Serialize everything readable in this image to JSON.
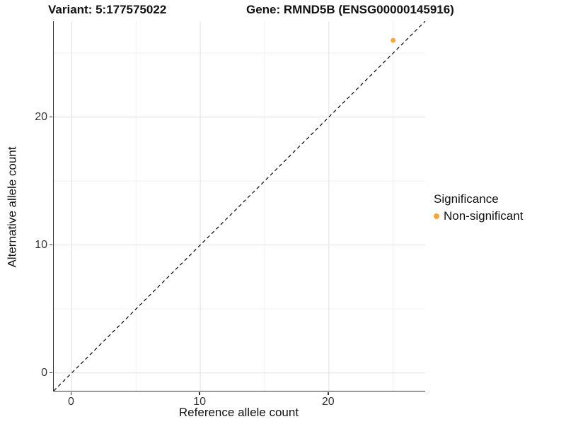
{
  "titles": {
    "variant": "Variant: 5:177575022",
    "gene": "Gene: RMND5B (ENSG00000145916)"
  },
  "chart_data": {
    "type": "scatter",
    "title_left": "Variant: 5:177575022",
    "title_right": "Gene: RMND5B (ENSG00000145916)",
    "xlabel": "Reference allele count",
    "ylabel": "Alternative allele count",
    "xlim": [
      -1.4,
      27.5
    ],
    "ylim": [
      -1.4,
      27.5
    ],
    "x_major_ticks": [
      0,
      10,
      20
    ],
    "x_minor_ticks": [
      5,
      15,
      25
    ],
    "y_major_ticks": [
      0,
      10,
      20
    ],
    "y_minor_ticks": [
      5,
      15,
      25
    ],
    "grid": true,
    "identity_line": {
      "type": "dashed",
      "slope": 1,
      "intercept": 0,
      "color": "#000000"
    },
    "points": [
      {
        "x": 25,
        "y": 26,
        "series": "Non-significant"
      }
    ],
    "legend": {
      "title": "Significance",
      "position": "right",
      "items": [
        {
          "label": "Non-significant",
          "color": "#FAA43A"
        }
      ]
    }
  },
  "colors": {
    "point": "#FAA43A",
    "grid_major": "#E5E5E5",
    "grid_minor": "#F0F0F0",
    "axis_line": "#333333",
    "identity_line": "#000000"
  }
}
